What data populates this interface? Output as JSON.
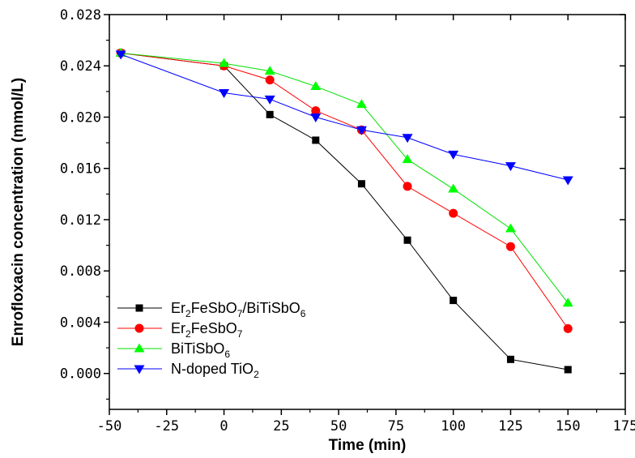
{
  "chart_data": {
    "type": "line",
    "title": "",
    "xlabel": "Time (min)",
    "ylabel": "Enrofloxacin concentration (mmol/L)",
    "xlim": [
      -50,
      175
    ],
    "ylim": [
      -0.0028,
      0.028
    ],
    "xticks": [
      -50,
      -25,
      0,
      25,
      50,
      75,
      100,
      125,
      150,
      175
    ],
    "xtick_labels": [
      "-50",
      "-25",
      "0",
      "25",
      "50",
      "75",
      "100",
      "125",
      "150",
      "175"
    ],
    "yticks": [
      0.0,
      0.004,
      0.008,
      0.012,
      0.016,
      0.02,
      0.024,
      0.028
    ],
    "ytick_labels": [
      "0.000",
      "0.004",
      "0.008",
      "0.012",
      "0.016",
      "0.020",
      "0.024",
      "0.028"
    ],
    "grid": false,
    "legend_position": "bottom-left",
    "series": [
      {
        "name": "Er2FeSbO7/BiTiSbO6",
        "legend_parts": [
          [
            "Er",
            ""
          ],
          [
            "2",
            "sub"
          ],
          [
            "FeSbO",
            ""
          ],
          [
            "7",
            "sub"
          ],
          [
            "/BiTiSbO",
            ""
          ],
          [
            "6",
            "sub"
          ]
        ],
        "marker": "square",
        "color": "#000000",
        "line_color": "#000000",
        "x": [
          -45,
          0,
          20,
          40,
          60,
          80,
          100,
          125,
          150
        ],
        "values": [
          0.025,
          0.024,
          0.0202,
          0.0182,
          0.0148,
          0.0104,
          0.0057,
          0.0011,
          0.0003
        ]
      },
      {
        "name": "Er2FeSbO7",
        "legend_parts": [
          [
            "Er",
            ""
          ],
          [
            "2",
            "sub"
          ],
          [
            "FeSbO",
            ""
          ],
          [
            "7",
            "sub"
          ]
        ],
        "marker": "circle",
        "color": "#ff0000",
        "line_color": "#ff0000",
        "x": [
          -45,
          0,
          20,
          40,
          60,
          80,
          100,
          125,
          150
        ],
        "values": [
          0.025,
          0.024,
          0.0229,
          0.0205,
          0.019,
          0.0146,
          0.0125,
          0.0099,
          0.0035
        ]
      },
      {
        "name": "BiTiSbO6",
        "legend_parts": [
          [
            "BiTiSbO",
            ""
          ],
          [
            "6",
            "sub"
          ]
        ],
        "marker": "triangle-up",
        "color": "#00ff00",
        "line_color": "#00e000",
        "x": [
          -45,
          0,
          20,
          40,
          60,
          80,
          100,
          125,
          150
        ],
        "values": [
          0.025,
          0.0242,
          0.0236,
          0.0224,
          0.021,
          0.0167,
          0.0144,
          0.0113,
          0.0055
        ]
      },
      {
        "name": "N-doped TiO2",
        "legend_parts": [
          [
            "N-doped TiO",
            ""
          ],
          [
            "2",
            "sub"
          ]
        ],
        "marker": "triangle-down",
        "color": "#0000ff",
        "line_color": "#0000ff",
        "x": [
          -45,
          0,
          20,
          40,
          60,
          80,
          100,
          125,
          150
        ],
        "values": [
          0.0249,
          0.0219,
          0.0214,
          0.02,
          0.019,
          0.0184,
          0.0171,
          0.0162,
          0.0151
        ]
      }
    ]
  }
}
